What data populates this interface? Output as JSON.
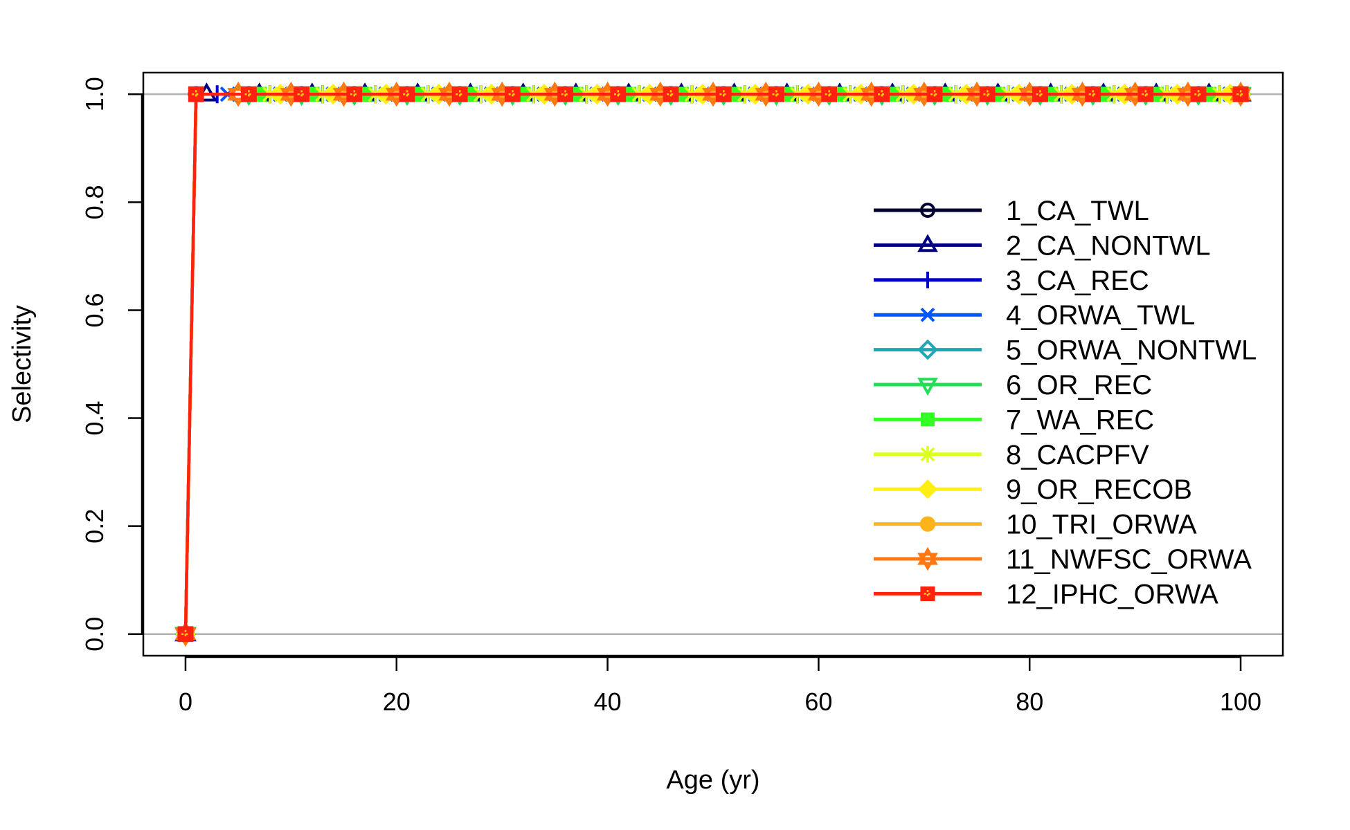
{
  "chart_data": {
    "type": "line",
    "title": "",
    "xlabel": "Age (yr)",
    "ylabel": "Selectivity",
    "xlim": [
      -4,
      104
    ],
    "ylim": [
      -0.04,
      1.04
    ],
    "xticks": [
      0,
      20,
      40,
      60,
      80,
      100
    ],
    "yticks": [
      0.0,
      0.2,
      0.4,
      0.6,
      0.8,
      1.0
    ],
    "xtick_labels": [
      "0",
      "20",
      "40",
      "60",
      "80",
      "100"
    ],
    "ytick_labels": [
      "0.0",
      "0.2",
      "0.4",
      "0.6",
      "0.8",
      "1.0"
    ],
    "reference_lines": [
      0,
      1
    ],
    "grid": false,
    "legend_position": "right",
    "age_values": "0 to 100 by 1",
    "selectivity_values": "0 at age 0, 1 at ages 1 to 100",
    "series": [
      {
        "name": "1_CA_TWL",
        "color": "#000033",
        "marker": "circle",
        "marker_start_age": 1
      },
      {
        "name": "2_CA_NONTWL",
        "color": "#000080",
        "marker": "triangle-up",
        "marker_start_age": 2
      },
      {
        "name": "3_CA_REC",
        "color": "#0000CC",
        "marker": "plus",
        "marker_start_age": 3
      },
      {
        "name": "4_ORWA_TWL",
        "color": "#0055FF",
        "marker": "x",
        "marker_start_age": 4
      },
      {
        "name": "5_ORWA_NONTWL",
        "color": "#1FA8B4",
        "marker": "diamond-open",
        "marker_start_age": 5
      },
      {
        "name": "6_OR_REC",
        "color": "#22DD55",
        "marker": "triangle-down",
        "marker_start_age": 6
      },
      {
        "name": "7_WA_REC",
        "color": "#33FF22",
        "marker": "square-filled",
        "marker_start_age": 7
      },
      {
        "name": "8_CACPFV",
        "color": "#DDFF22",
        "marker": "asterisk",
        "marker_start_age": 8
      },
      {
        "name": "9_OR_RECOB",
        "color": "#FFEE11",
        "marker": "diamond-filled",
        "marker_start_age": 9
      },
      {
        "name": "10_TRI_ORWA",
        "color": "#FFB31A",
        "marker": "circle-filled",
        "marker_start_age": 10
      },
      {
        "name": "11_NWFSC_ORWA",
        "color": "#FF7711",
        "marker": "star-of-david",
        "marker_start_age": 0
      },
      {
        "name": "12_IPHC_ORWA",
        "color": "#FF2211",
        "marker": "square-plus",
        "marker_start_age": 1
      }
    ]
  }
}
